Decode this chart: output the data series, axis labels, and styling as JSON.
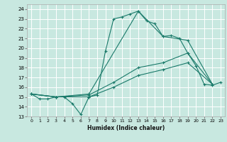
{
  "xlabel": "Humidex (Indice chaleur)",
  "bg_color": "#c8e8e0",
  "grid_color": "#ffffff",
  "line_color": "#1a7a6a",
  "xlim": [
    -0.5,
    23.5
  ],
  "ylim": [
    13,
    24.5
  ],
  "yticks": [
    13,
    14,
    15,
    16,
    17,
    18,
    19,
    20,
    21,
    22,
    23,
    24
  ],
  "xticks": [
    0,
    1,
    2,
    3,
    4,
    5,
    6,
    7,
    8,
    9,
    10,
    11,
    12,
    13,
    14,
    15,
    16,
    17,
    18,
    19,
    20,
    21,
    22,
    23
  ],
  "series": [
    {
      "x": [
        0,
        1,
        2,
        3,
        4,
        5,
        6,
        7,
        8,
        9,
        10,
        11,
        12,
        13,
        14,
        15,
        16,
        17,
        18,
        19,
        20,
        21,
        22,
        23
      ],
      "y": [
        15.3,
        14.8,
        14.8,
        15.0,
        15.0,
        14.3,
        13.2,
        15.0,
        15.2,
        19.7,
        23.0,
        23.2,
        23.5,
        23.8,
        22.8,
        22.5,
        21.2,
        21.3,
        21.0,
        19.5,
        18.2,
        16.3,
        16.2,
        16.5
      ]
    },
    {
      "x": [
        0,
        3,
        7,
        10,
        13,
        16,
        19,
        22
      ],
      "y": [
        15.3,
        15.0,
        15.0,
        16.0,
        17.2,
        17.8,
        18.5,
        16.3
      ]
    },
    {
      "x": [
        0,
        3,
        7,
        10,
        13,
        16,
        19,
        22
      ],
      "y": [
        15.3,
        15.0,
        15.2,
        16.5,
        18.0,
        18.5,
        19.5,
        16.3
      ]
    },
    {
      "x": [
        0,
        3,
        7,
        13,
        16,
        19,
        22
      ],
      "y": [
        15.3,
        15.0,
        15.3,
        23.8,
        21.2,
        20.8,
        16.3
      ]
    }
  ]
}
